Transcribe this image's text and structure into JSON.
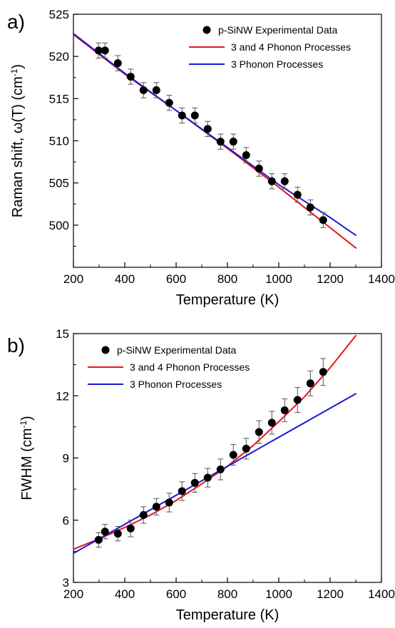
{
  "chart_data": [
    {
      "type": "scatter",
      "panel_label": "a)",
      "xlabel": "Temperature (K)",
      "ylabel": "Raman shift, ω(T) (cm",
      "ylabel_sup": "-1",
      "ylabel_tail": ")",
      "xlim": [
        200,
        1400
      ],
      "ylim": [
        495,
        525
      ],
      "xticks": [
        200,
        400,
        600,
        800,
        1000,
        1200,
        1400
      ],
      "yticks": [
        500,
        505,
        510,
        515,
        520,
        525
      ],
      "legend_position": "top-right",
      "series": [
        {
          "name": "p-SiNW Experimental Data",
          "kind": "points",
          "color": "#000000",
          "x": [
            298,
            323,
            373,
            423,
            473,
            523,
            573,
            623,
            673,
            723,
            773,
            823,
            873,
            923,
            973,
            1023,
            1073,
            1123,
            1173
          ],
          "y": [
            520.7,
            520.7,
            519.2,
            517.6,
            516.0,
            516.0,
            514.5,
            513.0,
            513.0,
            511.4,
            509.9,
            509.9,
            508.3,
            506.7,
            505.2,
            505.2,
            503.6,
            502.1,
            500.6
          ],
          "err": [
            0.9,
            0.9,
            0.9,
            0.9,
            0.9,
            0.9,
            0.9,
            0.9,
            0.9,
            0.9,
            0.9,
            0.9,
            0.9,
            0.9,
            0.9,
            0.9,
            0.9,
            0.9,
            0.9
          ]
        },
        {
          "name": "3 and 4 Phonon Processes",
          "kind": "line",
          "color": "#e8141b",
          "x": [
            200,
            400,
            600,
            800,
            1000,
            1200,
            1300
          ],
          "y": [
            522.6,
            517.9,
            513.6,
            509.1,
            504.5,
            499.7,
            497.3
          ]
        },
        {
          "name": "3 Phonon Processes",
          "kind": "line",
          "color": "#1a1ad6",
          "x": [
            200,
            400,
            600,
            800,
            1000,
            1200,
            1300
          ],
          "y": [
            522.7,
            518.0,
            513.6,
            509.2,
            504.8,
            500.9,
            498.8
          ]
        }
      ]
    },
    {
      "type": "scatter",
      "panel_label": "b)",
      "xlabel": "Temperature (K)",
      "ylabel": "FWHM (cm",
      "ylabel_sup": "-1",
      "ylabel_tail": ")",
      "xlim": [
        200,
        1400
      ],
      "ylim": [
        3,
        15
      ],
      "xticks": [
        200,
        400,
        600,
        800,
        1000,
        1200,
        1400
      ],
      "yticks": [
        3,
        6,
        9,
        12,
        15
      ],
      "legend_position": "top-left",
      "series": [
        {
          "name": "p-SiNW Experimental Data",
          "kind": "points",
          "color": "#000000",
          "x": [
            298,
            323,
            373,
            423,
            473,
            523,
            573,
            623,
            673,
            723,
            773,
            823,
            873,
            923,
            973,
            1023,
            1073,
            1123,
            1173
          ],
          "y": [
            5.05,
            5.45,
            5.35,
            5.6,
            6.25,
            6.65,
            6.85,
            7.4,
            7.8,
            8.05,
            8.45,
            9.15,
            9.45,
            10.25,
            10.7,
            11.3,
            11.8,
            12.6,
            13.15
          ],
          "err": [
            0.35,
            0.35,
            0.35,
            0.4,
            0.4,
            0.4,
            0.45,
            0.45,
            0.45,
            0.45,
            0.5,
            0.5,
            0.5,
            0.55,
            0.55,
            0.55,
            0.6,
            0.6,
            0.65
          ]
        },
        {
          "name": "3 and 4 Phonon Processes",
          "kind": "line",
          "color": "#e8141b",
          "x": [
            200,
            300,
            400,
            500,
            600,
            700,
            800,
            900,
            1000,
            1100,
            1200,
            1300
          ],
          "y": [
            4.6,
            5.1,
            5.65,
            6.25,
            6.95,
            7.75,
            8.6,
            9.6,
            10.75,
            11.95,
            13.35,
            14.9
          ]
        },
        {
          "name": "3 Phonon Processes",
          "kind": "line",
          "color": "#1a1ad6",
          "x": [
            200,
            1300
          ],
          "y": [
            4.4,
            12.1
          ]
        }
      ]
    }
  ]
}
